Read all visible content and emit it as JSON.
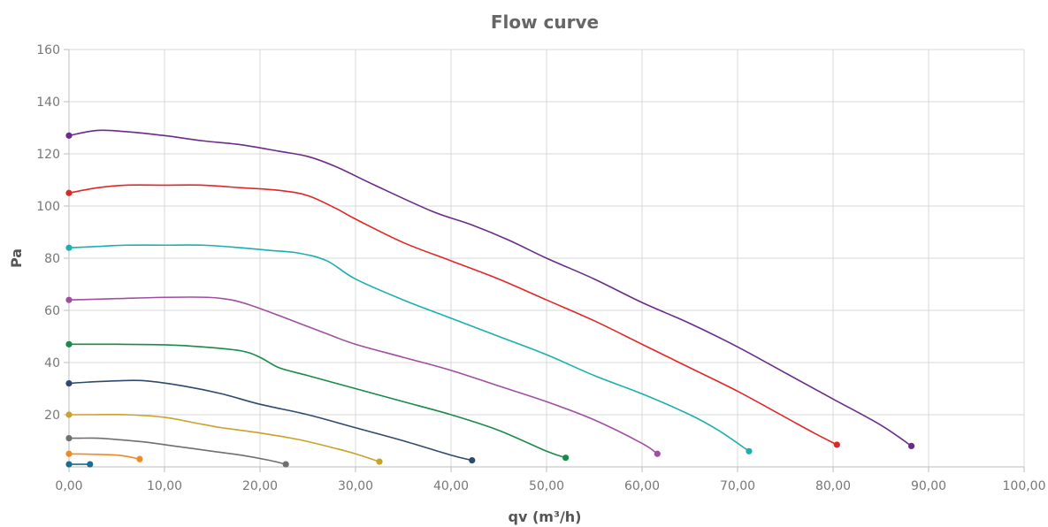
{
  "chart_data": {
    "type": "line",
    "title": "Flow curve",
    "xlabel": "qv (m³/h)",
    "ylabel": "Pa",
    "xlim": [
      0,
      100
    ],
    "ylim": [
      0,
      160
    ],
    "x_ticks": [
      "0,00",
      "10,00",
      "20,00",
      "30,00",
      "40,00",
      "50,00",
      "60,00",
      "70,00",
      "80,00",
      "90,00",
      "100,00"
    ],
    "y_ticks": [
      "20",
      "40",
      "60",
      "80",
      "100",
      "120",
      "140",
      "160"
    ],
    "y_tick_values": [
      20,
      40,
      60,
      80,
      100,
      120,
      140,
      160
    ],
    "grid": true,
    "series": [
      {
        "color": "#1a6f8f",
        "points": [
          [
            0,
            1
          ],
          [
            2.2,
            1
          ]
        ]
      },
      {
        "color": "#f08a24",
        "points": [
          [
            0,
            5
          ],
          [
            5,
            4.5
          ],
          [
            7.4,
            3
          ]
        ]
      },
      {
        "color": "#6f6f6f",
        "points": [
          [
            0,
            11
          ],
          [
            1,
            11
          ],
          [
            3,
            11
          ],
          [
            5,
            10.5
          ],
          [
            8,
            9.5
          ],
          [
            11,
            8
          ],
          [
            15,
            6
          ],
          [
            18,
            4.5
          ],
          [
            21,
            2.5
          ],
          [
            22.7,
            1
          ]
        ]
      },
      {
        "color": "#c9a227",
        "points": [
          [
            0,
            20
          ],
          [
            2,
            20
          ],
          [
            6,
            20
          ],
          [
            10,
            19
          ],
          [
            13,
            17
          ],
          [
            16,
            15
          ],
          [
            20,
            13
          ],
          [
            24,
            10.5
          ],
          [
            28,
            7
          ],
          [
            30,
            5
          ],
          [
            32.5,
            2
          ]
        ]
      },
      {
        "color": "#2d4a6e",
        "points": [
          [
            0,
            32
          ],
          [
            2,
            32.5
          ],
          [
            5,
            33
          ],
          [
            8,
            33
          ],
          [
            12,
            31
          ],
          [
            16,
            28
          ],
          [
            20,
            24
          ],
          [
            25,
            20
          ],
          [
            30,
            15
          ],
          [
            35,
            10
          ],
          [
            40,
            4.5
          ],
          [
            42.2,
            2.5
          ]
        ]
      },
      {
        "color": "#1a8a4a",
        "points": [
          [
            0,
            47
          ],
          [
            5,
            47
          ],
          [
            10,
            46.8
          ],
          [
            14,
            46
          ],
          [
            18,
            44.5
          ],
          [
            20,
            42
          ],
          [
            22,
            38
          ],
          [
            25,
            35
          ],
          [
            30,
            30
          ],
          [
            35,
            25
          ],
          [
            40,
            20
          ],
          [
            45,
            14
          ],
          [
            50,
            6
          ],
          [
            52,
            3.5
          ]
        ]
      },
      {
        "color": "#a04fa0",
        "points": [
          [
            0,
            64
          ],
          [
            5,
            64.5
          ],
          [
            10,
            65
          ],
          [
            14.5,
            65
          ],
          [
            17,
            64
          ],
          [
            19,
            62
          ],
          [
            22,
            58
          ],
          [
            27,
            51
          ],
          [
            30,
            47
          ],
          [
            35,
            42
          ],
          [
            40,
            37
          ],
          [
            45,
            31
          ],
          [
            50,
            25
          ],
          [
            55,
            18
          ],
          [
            60,
            9
          ],
          [
            61.6,
            5
          ]
        ]
      },
      {
        "color": "#1ab0b0",
        "points": [
          [
            0,
            84
          ],
          [
            3,
            84.5
          ],
          [
            6,
            85
          ],
          [
            10,
            85
          ],
          [
            14,
            85
          ],
          [
            18,
            84
          ],
          [
            21,
            83
          ],
          [
            24,
            82
          ],
          [
            27,
            79
          ],
          [
            30,
            72
          ],
          [
            35,
            64
          ],
          [
            40,
            57
          ],
          [
            45,
            50
          ],
          [
            50,
            43
          ],
          [
            55,
            35
          ],
          [
            60,
            28
          ],
          [
            65,
            20
          ],
          [
            68,
            14
          ],
          [
            71.2,
            6
          ]
        ]
      },
      {
        "color": "#e02727",
        "points": [
          [
            0,
            105
          ],
          [
            3,
            107
          ],
          [
            6,
            108
          ],
          [
            10,
            108
          ],
          [
            14,
            108
          ],
          [
            18,
            107
          ],
          [
            22,
            106
          ],
          [
            25,
            104
          ],
          [
            28,
            99
          ],
          [
            30,
            95
          ],
          [
            35,
            86
          ],
          [
            40,
            79
          ],
          [
            45,
            72
          ],
          [
            50,
            64
          ],
          [
            55,
            56
          ],
          [
            60,
            47
          ],
          [
            65,
            38
          ],
          [
            70,
            29
          ],
          [
            75,
            19
          ],
          [
            78,
            13
          ],
          [
            80.4,
            8.5
          ]
        ]
      },
      {
        "color": "#6a2b8a",
        "points": [
          [
            0,
            127
          ],
          [
            3,
            129
          ],
          [
            6,
            128.5
          ],
          [
            10,
            127
          ],
          [
            14,
            125
          ],
          [
            18,
            123.5
          ],
          [
            22,
            121
          ],
          [
            25,
            119
          ],
          [
            28,
            115
          ],
          [
            32,
            108
          ],
          [
            38,
            98
          ],
          [
            42,
            93
          ],
          [
            46,
            87
          ],
          [
            50,
            80
          ],
          [
            55,
            72
          ],
          [
            60,
            63
          ],
          [
            65,
            55
          ],
          [
            70,
            46
          ],
          [
            75,
            36
          ],
          [
            80,
            26
          ],
          [
            85,
            16
          ],
          [
            88.2,
            8
          ]
        ]
      }
    ]
  }
}
